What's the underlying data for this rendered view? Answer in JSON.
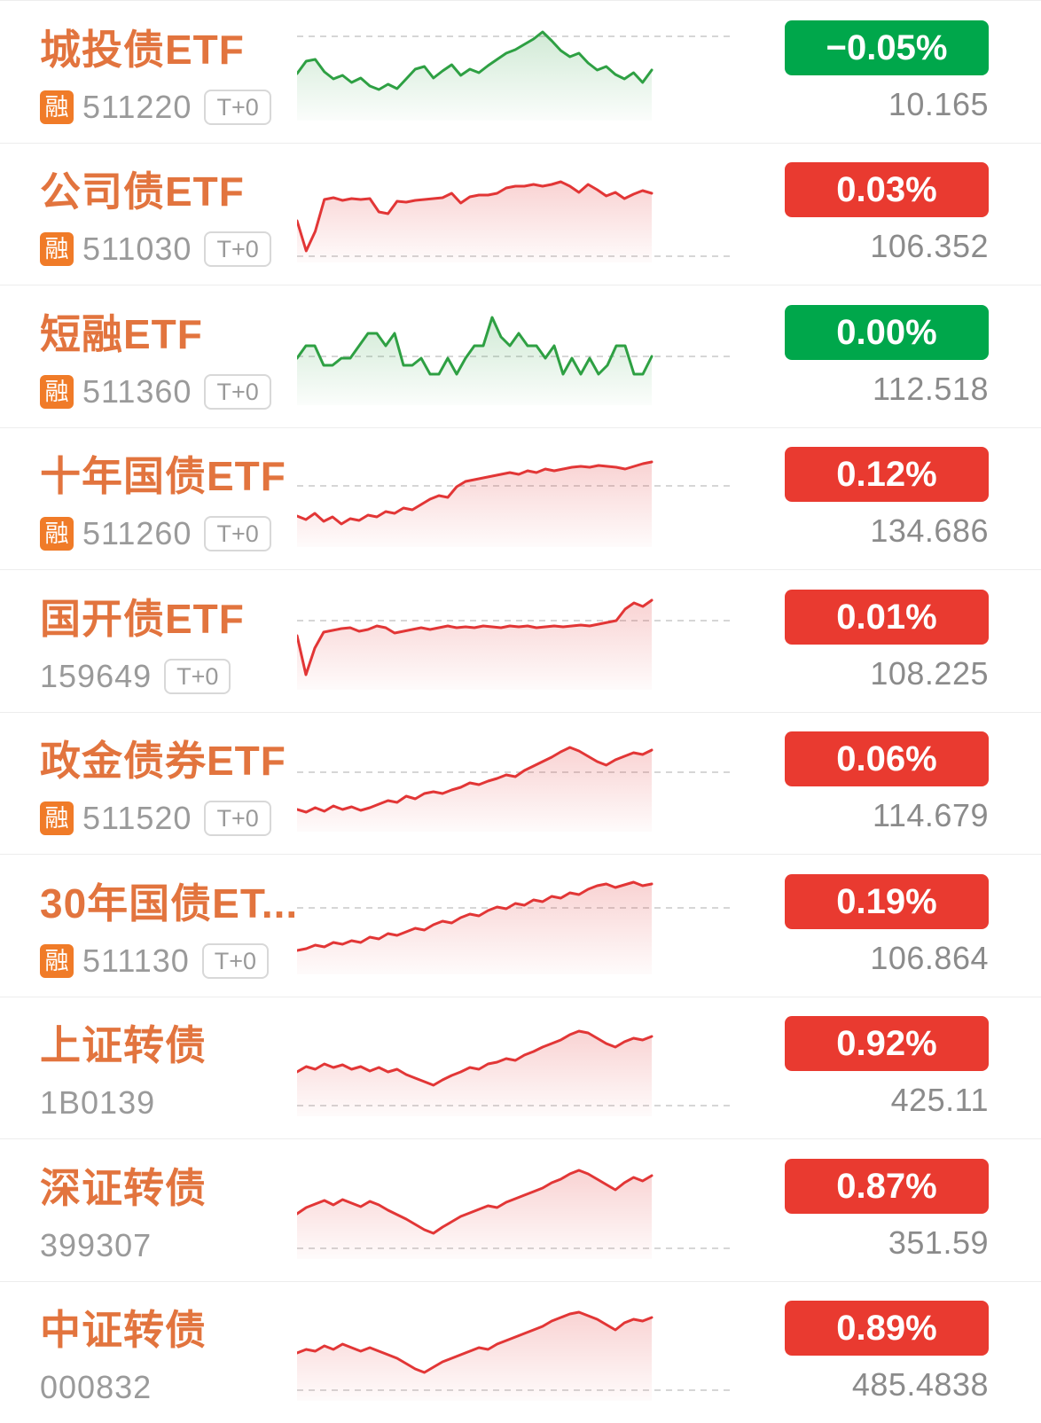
{
  "colors": {
    "up_badge": "#e93a30",
    "down_badge": "#00a74b",
    "line_up": "#e23636",
    "line_down": "#2ea043",
    "name_orange": "#e2743e",
    "code_gray": "#9a9a9a",
    "price_gray": "#8b8b8b",
    "rong_bg": "#f07b28",
    "baseline_gray": "#c9c9c9"
  },
  "badges": {
    "rong": "融"
  },
  "rows": [
    {
      "name": "城投债ETF",
      "rong": true,
      "code": "511220",
      "t0": "T+0",
      "change": "−0.05%",
      "price": "10.165",
      "direction": "down",
      "baseline": 10,
      "spark": [
        52,
        38,
        36,
        50,
        58,
        54,
        62,
        57,
        66,
        70,
        64,
        69,
        58,
        47,
        44,
        57,
        49,
        42,
        54,
        47,
        51,
        43,
        36,
        29,
        25,
        19,
        13,
        5,
        15,
        26,
        33,
        29,
        40,
        48,
        44,
        53,
        58,
        51,
        62,
        48
      ]
    },
    {
      "name": "公司债ETF",
      "rong": true,
      "code": "511030",
      "t0": "T+0",
      "change": "0.03%",
      "price": "106.352",
      "direction": "up",
      "baseline": 98,
      "spark": [
        58,
        92,
        70,
        34,
        32,
        35,
        33,
        34,
        33,
        48,
        50,
        36,
        37,
        35,
        34,
        33,
        32,
        27,
        38,
        31,
        29,
        29,
        27,
        21,
        19,
        19,
        17,
        19,
        17,
        14,
        19,
        26,
        17,
        23,
        30,
        26,
        33,
        28,
        24,
        27
      ]
    },
    {
      "name": "短融ETF",
      "rong": true,
      "code": "511360",
      "t0": "T+0",
      "change": "0.00%",
      "price": "112.518",
      "direction": "down",
      "baseline": 50,
      "spark": [
        52,
        38,
        38,
        60,
        60,
        52,
        52,
        38,
        24,
        24,
        38,
        24,
        60,
        60,
        52,
        70,
        70,
        52,
        70,
        52,
        38,
        38,
        6,
        28,
        38,
        24,
        38,
        38,
        52,
        38,
        70,
        52,
        70,
        52,
        70,
        60,
        38,
        38,
        70,
        70,
        50
      ]
    },
    {
      "name": "十年国债ETF",
      "rong": true,
      "code": "511260",
      "t0": "T+0",
      "change": "0.12%",
      "price": "134.686",
      "direction": "up",
      "baseline": 36,
      "spark": [
        70,
        74,
        67,
        76,
        71,
        79,
        73,
        75,
        69,
        71,
        65,
        67,
        61,
        63,
        57,
        51,
        47,
        49,
        37,
        31,
        29,
        27,
        25,
        23,
        21,
        23,
        19,
        21,
        17,
        19,
        17,
        15,
        14,
        15,
        13,
        14,
        15,
        17,
        14,
        11,
        9
      ]
    },
    {
      "name": "国开债ETF",
      "rong": false,
      "code": "159649",
      "t0": "T+0",
      "change": "0.01%",
      "price": "108.225",
      "direction": "up",
      "baseline": 27,
      "spark": [
        44,
        88,
        58,
        40,
        38,
        36,
        35,
        39,
        37,
        33,
        35,
        41,
        39,
        37,
        35,
        37,
        35,
        33,
        35,
        34,
        35,
        33,
        34,
        35,
        33,
        34,
        33,
        35,
        34,
        33,
        34,
        33,
        32,
        33,
        31,
        29,
        27,
        14,
        7,
        11,
        4
      ]
    },
    {
      "name": "政金债券ETF",
      "rong": true,
      "code": "511520",
      "t0": "T+0",
      "change": "0.06%",
      "price": "114.679",
      "direction": "up",
      "baseline": 38,
      "spark": [
        80,
        83,
        78,
        82,
        76,
        80,
        77,
        81,
        78,
        74,
        70,
        72,
        65,
        68,
        62,
        60,
        62,
        58,
        55,
        50,
        52,
        48,
        45,
        41,
        43,
        36,
        31,
        26,
        21,
        15,
        10,
        14,
        20,
        26,
        30,
        24,
        20,
        16,
        18,
        13
      ]
    },
    {
      "name": "30年国债ET...",
      "rong": true,
      "code": "511130",
      "t0": "T+0",
      "change": "0.19%",
      "price": "106.864",
      "direction": "up",
      "baseline": 30,
      "spark": [
        78,
        76,
        72,
        74,
        69,
        71,
        67,
        69,
        63,
        65,
        59,
        61,
        57,
        53,
        55,
        49,
        45,
        47,
        41,
        37,
        39,
        33,
        29,
        31,
        25,
        27,
        21,
        23,
        17,
        19,
        13,
        15,
        9,
        5,
        3,
        7,
        4,
        1,
        5,
        3
      ]
    },
    {
      "name": "上证转债",
      "rong": false,
      "code": "1B0139",
      "t0": null,
      "change": "0.92%",
      "price": "425.11",
      "direction": "up",
      "baseline": 93,
      "spark": [
        55,
        49,
        52,
        46,
        50,
        47,
        52,
        49,
        54,
        50,
        55,
        52,
        58,
        62,
        66,
        70,
        64,
        59,
        55,
        50,
        52,
        46,
        44,
        40,
        42,
        36,
        32,
        27,
        23,
        19,
        13,
        9,
        11,
        17,
        23,
        27,
        21,
        17,
        19,
        15
      ]
    },
    {
      "name": "深证转债",
      "rong": false,
      "code": "399307",
      "t0": null,
      "change": "0.87%",
      "price": "351.59",
      "direction": "up",
      "baseline": 93,
      "spark": [
        54,
        47,
        43,
        39,
        44,
        38,
        42,
        46,
        40,
        44,
        50,
        55,
        60,
        66,
        72,
        76,
        69,
        63,
        57,
        53,
        49,
        45,
        47,
        41,
        37,
        33,
        29,
        25,
        19,
        15,
        9,
        5,
        9,
        15,
        21,
        27,
        19,
        13,
        17,
        11
      ]
    },
    {
      "name": "中证转债",
      "rong": false,
      "code": "000832",
      "t0": null,
      "change": "0.89%",
      "price": "485.4838",
      "direction": "up",
      "baseline": 93,
      "spark": [
        51,
        47,
        49,
        43,
        47,
        41,
        45,
        49,
        45,
        49,
        53,
        57,
        63,
        69,
        73,
        67,
        61,
        57,
        53,
        49,
        45,
        47,
        41,
        37,
        33,
        29,
        25,
        21,
        15,
        11,
        7,
        5,
        9,
        13,
        19,
        25,
        17,
        13,
        15,
        11
      ]
    }
  ]
}
